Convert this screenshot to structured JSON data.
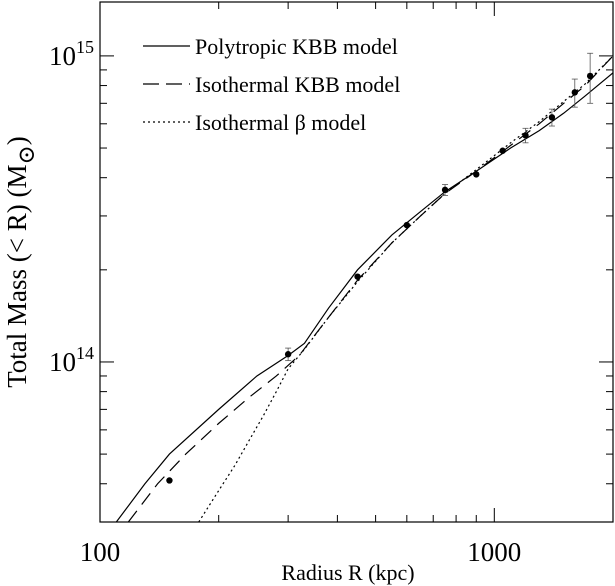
{
  "chart_data": {
    "type": "line",
    "xlabel": "Radius  R (kpc)",
    "ylabel": "Total Mass (< R) (M",
    "ylabel_symbol": "⊙",
    "ylabel_close": ")",
    "xscale": "log",
    "yscale": "log",
    "xlim": [
      100,
      2000
    ],
    "ylim": [
      30000000000000,
      1500000000000000
    ],
    "x_ticks": [
      {
        "value": 100,
        "label": "100"
      },
      {
        "value": 1000,
        "label": "1000"
      }
    ],
    "y_ticks": [
      {
        "value": 100000000000000,
        "base": "10",
        "exp": "14"
      },
      {
        "value": 1000000000000000,
        "base": "10",
        "exp": "15"
      }
    ],
    "legend_position": "top-left",
    "series": [
      {
        "name": "Polytropic KBB model",
        "style": "solid",
        "x": [
          110,
          130,
          150,
          200,
          250,
          300,
          330,
          380,
          450,
          550,
          650,
          750,
          900,
          1100,
          1300,
          1500,
          1700,
          2000
        ],
        "y": [
          30000000000000,
          40000000000000,
          50000000000000,
          70000000000000,
          90000000000000,
          105000000000000,
          115000000000000,
          150000000000000,
          200000000000000,
          260000000000000,
          310000000000000,
          360000000000000,
          420000000000000,
          500000000000000,
          570000000000000,
          650000000000000,
          740000000000000,
          880000000000000
        ]
      },
      {
        "name": "Isothermal KBB model",
        "style": "dashed",
        "x": [
          118,
          140,
          165,
          200,
          240,
          280,
          320,
          380,
          450,
          550,
          650,
          750,
          900,
          1100,
          1300,
          1500,
          1700,
          2000
        ],
        "y": [
          30000000000000,
          40000000000000,
          50000000000000,
          63000000000000,
          77000000000000,
          90000000000000,
          105000000000000,
          140000000000000,
          185000000000000,
          245000000000000,
          300000000000000,
          355000000000000,
          420000000000000,
          510000000000000,
          600000000000000,
          700000000000000,
          800000000000000,
          1000000000000000
        ]
      },
      {
        "name": "Isothermal β  model",
        "style": "dotted",
        "x": [
          178,
          200,
          220,
          240,
          260,
          280,
          300,
          330,
          380,
          450,
          550,
          650,
          750,
          900,
          1100,
          1300,
          1500,
          1700,
          2000
        ],
        "y": [
          30000000000000,
          38000000000000,
          46000000000000,
          56000000000000,
          67000000000000,
          80000000000000,
          95000000000000,
          110000000000000,
          140000000000000,
          183000000000000,
          245000000000000,
          300000000000000,
          355000000000000,
          425000000000000,
          520000000000000,
          610000000000000,
          710000000000000,
          810000000000000,
          1000000000000000
        ]
      }
    ],
    "data_points": [
      {
        "x": 150,
        "y": 41000000000000,
        "err": 0
      },
      {
        "x": 300,
        "y": 106000000000000,
        "err": 5000000000000
      },
      {
        "x": 450,
        "y": 190000000000000,
        "err": 0
      },
      {
        "x": 600,
        "y": 280000000000000,
        "err": 0
      },
      {
        "x": 750,
        "y": 365000000000000,
        "err": 15000000000000
      },
      {
        "x": 900,
        "y": 410000000000000,
        "err": 0
      },
      {
        "x": 1050,
        "y": 490000000000000,
        "err": 0
      },
      {
        "x": 1200,
        "y": 550000000000000,
        "err": 30000000000000
      },
      {
        "x": 1400,
        "y": 630000000000000,
        "err": 40000000000000
      },
      {
        "x": 1600,
        "y": 760000000000000,
        "err": 80000000000000
      },
      {
        "x": 1750,
        "y": 860000000000000,
        "err": 160000000000000
      }
    ]
  }
}
